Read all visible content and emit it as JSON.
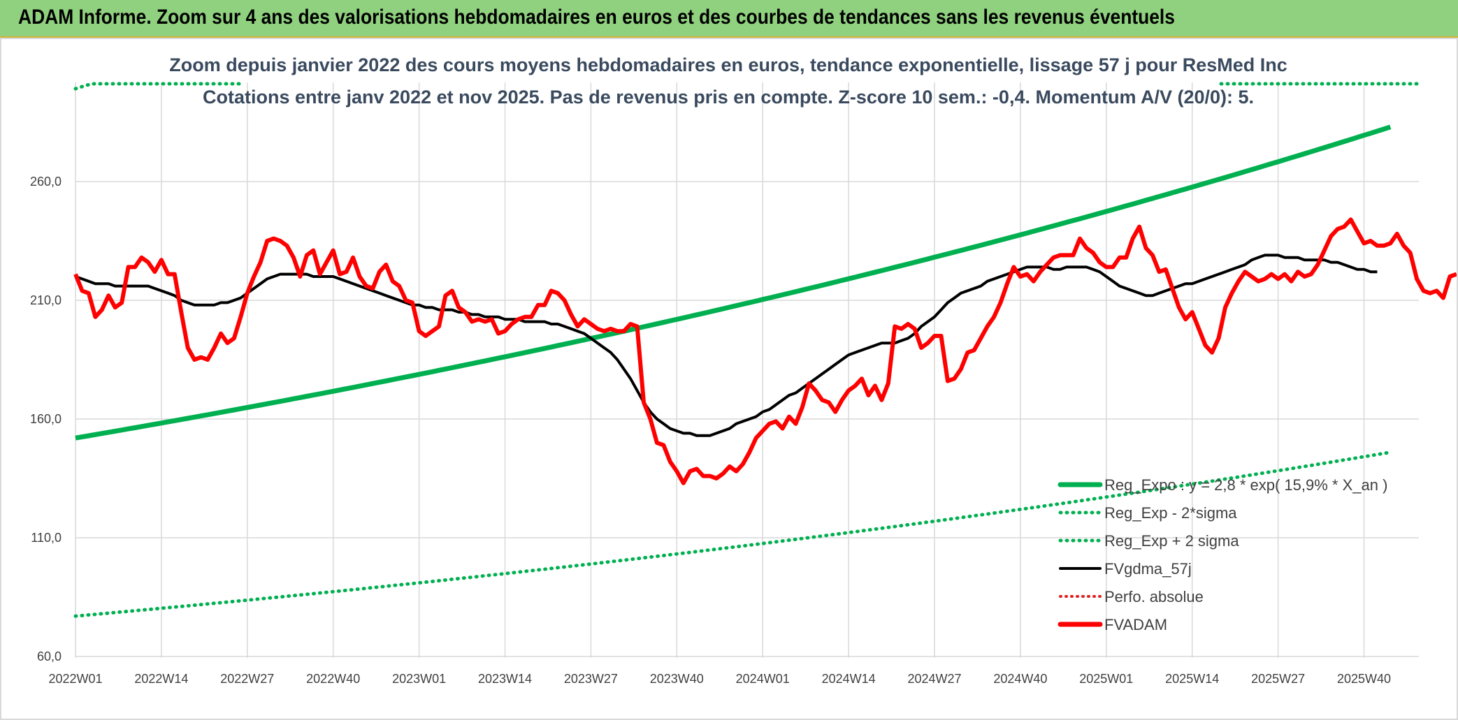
{
  "header": {
    "title": "ADAM Informe. Zoom sur 4 ans des valorisations hebdomadaires en euros et des courbes de tendances sans les revenus éventuels"
  },
  "colors": {
    "title_bar": "#8fd17e",
    "trend_green": "#00b050",
    "price_red": "#ff0000",
    "smooth_black": "#000000",
    "perf_red": "#e02020",
    "grid": "#d9d9d9"
  },
  "chart_data": {
    "type": "line",
    "title": "Zoom depuis janvier 2022 des cours moyens hebdomadaires en euros, tendance exponentielle, lissage 57 j pour ResMed Inc",
    "subtitle": "Cotations entre janv 2022 et nov 2025. Pas de revenus pris en compte. Z-score 10 sem.: -0,4. Momentum A/V (20/0): 5.",
    "xlabel": "",
    "ylabel": "",
    "ylim": [
      60,
      290
    ],
    "y_ticks": [
      "60,0",
      "110,0",
      "160,0",
      "210,0",
      "260,0"
    ],
    "y_tick_values": [
      60,
      110,
      160,
      210,
      260
    ],
    "x_start_week": "2022W01",
    "x_ticks": [
      "2022W01",
      "2022W14",
      "2022W27",
      "2022W40",
      "2023W01",
      "2023W14",
      "2023W27",
      "2023W40",
      "2024W01",
      "2024W14",
      "2024W27",
      "2024W40",
      "2025W01",
      "2025W14",
      "2025W27",
      "2025W40"
    ],
    "grid": true,
    "legend_position": "bottom-right",
    "series": [
      {
        "name": "Reg_Expo : y = 2,8 * exp( 15,9% * X_an )",
        "style": "solid-thick",
        "color": "#00b050",
        "start": 152,
        "end": 283
      },
      {
        "name": "Reg_Exp - 2*sigma",
        "style": "dotted",
        "color": "#00b050",
        "start": 77,
        "end": 146
      },
      {
        "name": "Reg_Exp + 2 sigma",
        "style": "dotted",
        "color": "#00b050",
        "values_note_visible_only_top": true,
        "start": 302,
        "end": 300
      },
      {
        "name": "FVgdma_57j",
        "style": "solid",
        "color": "#000000",
        "values": [
          220,
          219,
          218,
          217,
          217,
          217,
          216,
          216,
          216,
          216,
          216,
          216,
          215,
          214,
          213,
          212,
          210,
          209,
          208,
          208,
          208,
          208,
          209,
          209,
          210,
          211,
          213,
          215,
          217,
          219,
          220,
          221,
          221,
          221,
          221,
          221,
          220,
          220,
          220,
          220,
          219,
          218,
          217,
          216,
          215,
          214,
          213,
          212,
          211,
          210,
          209,
          208,
          208,
          207,
          207,
          206,
          206,
          206,
          205,
          205,
          204,
          204,
          203,
          203,
          203,
          202,
          202,
          202,
          201,
          201,
          201,
          201,
          200,
          200,
          199,
          198,
          197,
          196,
          194,
          192,
          190,
          188,
          185,
          181,
          177,
          172,
          167,
          163,
          160,
          158,
          156,
          155,
          154,
          154,
          153,
          153,
          153,
          154,
          155,
          156,
          158,
          159,
          160,
          161,
          163,
          164,
          166,
          168,
          170,
          171,
          173,
          175,
          177,
          179,
          181,
          183,
          185,
          187,
          188,
          189,
          190,
          191,
          192,
          192,
          192,
          193,
          194,
          196,
          199,
          201,
          203,
          206,
          209,
          211,
          213,
          214,
          215,
          216,
          218,
          219,
          220,
          221,
          222,
          223,
          224,
          224,
          224,
          224,
          223,
          223,
          224,
          224,
          224,
          224,
          223,
          222,
          220,
          218,
          216,
          215,
          214,
          213,
          212,
          212,
          213,
          214,
          215,
          216,
          217,
          217,
          218,
          219,
          220,
          221,
          222,
          223,
          224,
          225,
          227,
          228,
          229,
          229,
          229,
          228,
          228,
          228,
          227,
          227,
          227,
          227,
          226,
          226,
          225,
          224,
          223,
          223,
          222,
          222
        ]
      },
      {
        "name": "Perfo. absolue",
        "style": "dotted",
        "color": "#e02020",
        "values": []
      },
      {
        "name": "FVADAM",
        "style": "solid-thick",
        "color": "#ff0000",
        "values": [
          221,
          214,
          213,
          203,
          206,
          212,
          207,
          209,
          224,
          224,
          228,
          226,
          222,
          227,
          221,
          221,
          205,
          190,
          185,
          186,
          185,
          190,
          196,
          192,
          194,
          203,
          213,
          220,
          226,
          235,
          236,
          235,
          233,
          228,
          220,
          229,
          231,
          221,
          226,
          231,
          221,
          222,
          228,
          220,
          216,
          215,
          222,
          225,
          218,
          216,
          210,
          209,
          197,
          195,
          197,
          199,
          212,
          214,
          207,
          205,
          201,
          202,
          201,
          202,
          196,
          197,
          200,
          202,
          203,
          203,
          208,
          208,
          214,
          213,
          210,
          204,
          199,
          202,
          200,
          198,
          197,
          198,
          197,
          197,
          200,
          199,
          167,
          160,
          150,
          149,
          142,
          138,
          133,
          138,
          139,
          136,
          136,
          135,
          137,
          140,
          138,
          141,
          146,
          152,
          155,
          158,
          159,
          156,
          161,
          158,
          165,
          175,
          172,
          168,
          167,
          163,
          168,
          172,
          174,
          177,
          170,
          174,
          168,
          175,
          199,
          198,
          200,
          198,
          190,
          192,
          195,
          195,
          176,
          177,
          181,
          188,
          189,
          194,
          199,
          203,
          209,
          217,
          224,
          220,
          221,
          218,
          222,
          225,
          228,
          229,
          229,
          229,
          236,
          232,
          230,
          226,
          224,
          224,
          228,
          228,
          236,
          241,
          232,
          229,
          222,
          223,
          215,
          207,
          202,
          205,
          198,
          191,
          188,
          194,
          207,
          213,
          218,
          222,
          220,
          218,
          219,
          221,
          219,
          221,
          218,
          222,
          220,
          221,
          225,
          231,
          237,
          240,
          241,
          244,
          239,
          234,
          235,
          233,
          233,
          234,
          238,
          233,
          230,
          219,
          214,
          213,
          214,
          211,
          220,
          221
        ]
      }
    ]
  },
  "legend": [
    {
      "label": "Reg_Expo : y = 2,8 * exp( 15,9% *  X_an )",
      "key": "reg-expo"
    },
    {
      "label": "Reg_Exp - 2*sigma",
      "key": "reg-exp-minus"
    },
    {
      "label": "Reg_Exp + 2 sigma",
      "key": "reg-exp-plus"
    },
    {
      "label": "FVgdma_57j",
      "key": "fvgdma"
    },
    {
      "label": "Perfo. absolue",
      "key": "perfo"
    },
    {
      "label": "FVADAM",
      "key": "fvadam"
    }
  ]
}
